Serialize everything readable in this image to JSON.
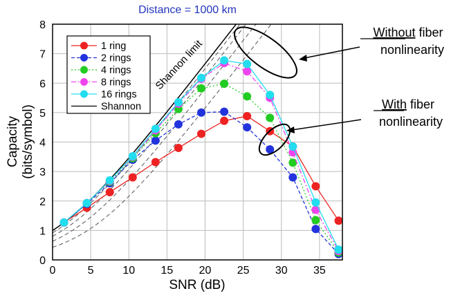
{
  "chart_data": {
    "type": "line",
    "title": "Distance = 1000 km",
    "xlabel": "SNR (dB)",
    "ylabel_line1": "Capacity",
    "ylabel_line2": "(bits/symbol)",
    "xlim": [
      0,
      38
    ],
    "ylim": [
      0,
      8
    ],
    "xticks": [
      0,
      5,
      10,
      15,
      20,
      25,
      30,
      35
    ],
    "yticks": [
      0,
      1,
      2,
      3,
      4,
      5,
      6,
      7,
      8
    ],
    "grid": true,
    "legend_position": "top-left",
    "x": [
      1.5,
      4.5,
      7.5,
      10.5,
      13.5,
      16.5,
      19.5,
      22.5,
      25.5,
      28.5,
      31.5,
      34.5,
      37.5
    ],
    "series": [
      {
        "name": "1 ring",
        "color": "#ee2222",
        "dash": "solid",
        "values": [
          1.27,
          1.77,
          2.3,
          2.8,
          3.32,
          3.8,
          4.28,
          4.72,
          4.88,
          4.37,
          3.85,
          2.5,
          1.33
        ]
      },
      {
        "name": "2 rings",
        "color": "#2233dd",
        "dash": "dashed",
        "values": [
          1.27,
          1.9,
          2.6,
          3.4,
          4.05,
          4.6,
          5.0,
          5.03,
          4.5,
          3.75,
          2.8,
          1.05,
          0.2
        ]
      },
      {
        "name": "4 rings",
        "color": "#22cc22",
        "dash": "dotted",
        "values": [
          1.27,
          1.93,
          2.65,
          3.45,
          4.3,
          5.12,
          5.82,
          5.98,
          5.55,
          4.82,
          3.3,
          1.35,
          0.25
        ]
      },
      {
        "name": "8 rings",
        "color": "#ee44ee",
        "dash": "dashdot",
        "values": [
          1.27,
          1.93,
          2.68,
          3.5,
          4.4,
          5.3,
          6.15,
          6.68,
          6.4,
          5.5,
          3.65,
          1.7,
          0.3
        ]
      },
      {
        "name": "16 rings",
        "color": "#22ddee",
        "dash": "solid",
        "values": [
          1.27,
          1.93,
          2.7,
          3.52,
          4.45,
          5.35,
          6.18,
          6.77,
          6.65,
          5.6,
          3.85,
          1.95,
          0.35
        ]
      }
    ],
    "shannon": {
      "name": "Shannon",
      "color": "#000000",
      "label": "Shannon limit"
    },
    "annotations": {
      "without_underlined": "Without",
      "without_rest": " fiber",
      "without_line2": "nonlinearity",
      "with_underlined": "With",
      "with_rest": " fiber",
      "with_line2": "nonlinearity"
    }
  }
}
